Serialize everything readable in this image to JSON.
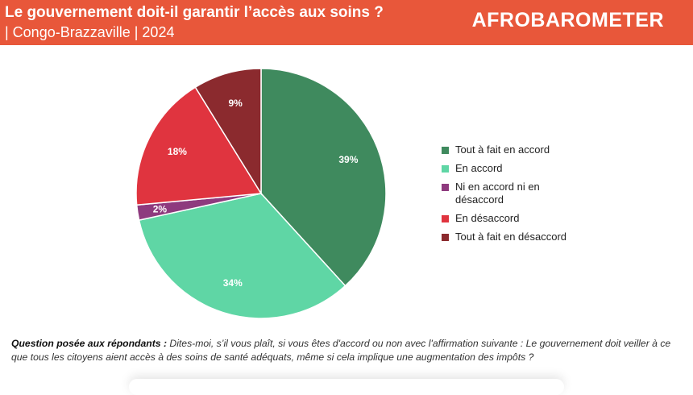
{
  "header": {
    "title": "Le gouvernement doit-il garantir l’accès aux soins ?",
    "subtitle": "| Congo-Brazzaville | 2024",
    "logo": "AFROBAROMETER"
  },
  "chart_data": {
    "type": "pie",
    "title": "Le gouvernement doit-il garantir l’accès aux soins ?",
    "slices": [
      {
        "label": "Tout à fait en accord",
        "value": 39,
        "display": "39%",
        "color": "#3f8a5e"
      },
      {
        "label": "En accord",
        "value": 34,
        "display": "34%",
        "color": "#5fd6a5"
      },
      {
        "label": "Ni en accord ni en désaccord",
        "value": 2,
        "display": "2%",
        "color": "#8e3a7e"
      },
      {
        "label": "En désaccord",
        "value": 18,
        "display": "18%",
        "color": "#e0343f"
      },
      {
        "label": "Tout à fait en désaccord",
        "value": 9,
        "display": "9%",
        "color": "#8b2a2e"
      }
    ],
    "legend_position": "right",
    "start": "top",
    "direction": "clockwise"
  },
  "footer": {
    "question_label": "Question posée aux répondants :",
    "question_text": " Dites-moi, s’il vous plaît, si vous êtes d'accord ou non avec l'affirmation suivante : Le gouvernement doit veiller à ce que tous les citoyens aient accès à des soins de santé adéquats, même si cela implique une augmentation des impôts ?"
  }
}
